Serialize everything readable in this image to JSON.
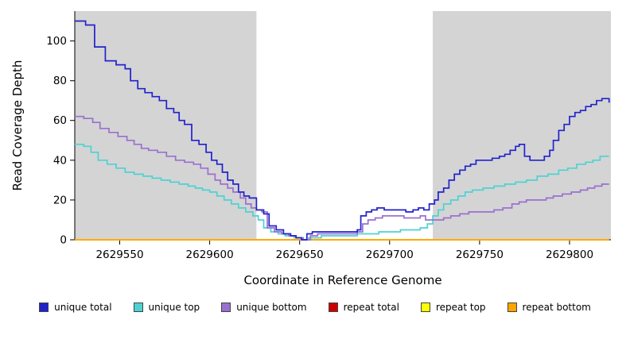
{
  "chart_data": {
    "type": "line",
    "subtype": "step",
    "title": "",
    "xlabel": "Coordinate in Reference Genome",
    "ylabel": "Read Coverage Depth",
    "xlim": [
      2629525,
      2629823
    ],
    "ylim": [
      0,
      115
    ],
    "x_ticks": [
      2629550,
      2629600,
      2629650,
      2629700,
      2629750,
      2629800
    ],
    "y_ticks": [
      0,
      20,
      40,
      60,
      80,
      100
    ],
    "grid": false,
    "legend_position": "bottom",
    "shaded_background_color": "#d4d4d4",
    "unshaded_region": [
      2629626,
      2629724
    ],
    "series": [
      {
        "name": "unique total",
        "color": "#2222cc",
        "points": [
          [
            2629525,
            110
          ],
          [
            2629531,
            108
          ],
          [
            2629536,
            97
          ],
          [
            2629542,
            90
          ],
          [
            2629548,
            88
          ],
          [
            2629553,
            86
          ],
          [
            2629556,
            80
          ],
          [
            2629560,
            76
          ],
          [
            2629564,
            74
          ],
          [
            2629568,
            72
          ],
          [
            2629572,
            70
          ],
          [
            2629576,
            66
          ],
          [
            2629580,
            64
          ],
          [
            2629583,
            60
          ],
          [
            2629586,
            58
          ],
          [
            2629590,
            50
          ],
          [
            2629594,
            48
          ],
          [
            2629598,
            44
          ],
          [
            2629601,
            40
          ],
          [
            2629604,
            38
          ],
          [
            2629607,
            34
          ],
          [
            2629610,
            30
          ],
          [
            2629613,
            28
          ],
          [
            2629616,
            24
          ],
          [
            2629619,
            22
          ],
          [
            2629622,
            21
          ],
          [
            2629626,
            15
          ],
          [
            2629630,
            13
          ],
          [
            2629633,
            7
          ],
          [
            2629637,
            5
          ],
          [
            2629641,
            3
          ],
          [
            2629645,
            2
          ],
          [
            2629648,
            1
          ],
          [
            2629651,
            0
          ],
          [
            2629654,
            3
          ],
          [
            2629657,
            4
          ],
          [
            2629663,
            4
          ],
          [
            2629678,
            4
          ],
          [
            2629682,
            5
          ],
          [
            2629684,
            12
          ],
          [
            2629687,
            14
          ],
          [
            2629690,
            15
          ],
          [
            2629693,
            16
          ],
          [
            2629697,
            15
          ],
          [
            2629703,
            15
          ],
          [
            2629709,
            14
          ],
          [
            2629713,
            15
          ],
          [
            2629716,
            16
          ],
          [
            2629719,
            15
          ],
          [
            2629722,
            18
          ],
          [
            2629725,
            20
          ],
          [
            2629727,
            24
          ],
          [
            2629730,
            26
          ],
          [
            2629733,
            30
          ],
          [
            2629736,
            33
          ],
          [
            2629739,
            35
          ],
          [
            2629742,
            37
          ],
          [
            2629745,
            38
          ],
          [
            2629748,
            40
          ],
          [
            2629753,
            40
          ],
          [
            2629757,
            41
          ],
          [
            2629761,
            42
          ],
          [
            2629764,
            43
          ],
          [
            2629767,
            45
          ],
          [
            2629770,
            47
          ],
          [
            2629772,
            48
          ],
          [
            2629775,
            42
          ],
          [
            2629778,
            40
          ],
          [
            2629783,
            40
          ],
          [
            2629786,
            42
          ],
          [
            2629789,
            45
          ],
          [
            2629791,
            50
          ],
          [
            2629794,
            55
          ],
          [
            2629797,
            58
          ],
          [
            2629800,
            62
          ],
          [
            2629803,
            64
          ],
          [
            2629806,
            65
          ],
          [
            2629809,
            67
          ],
          [
            2629812,
            68
          ],
          [
            2629815,
            70
          ],
          [
            2629818,
            71
          ],
          [
            2629822,
            69
          ]
        ]
      },
      {
        "name": "unique top",
        "color": "#4dd2d2",
        "points": [
          [
            2629525,
            48
          ],
          [
            2629530,
            47
          ],
          [
            2629534,
            44
          ],
          [
            2629538,
            40
          ],
          [
            2629543,
            38
          ],
          [
            2629548,
            36
          ],
          [
            2629553,
            34
          ],
          [
            2629558,
            33
          ],
          [
            2629563,
            32
          ],
          [
            2629568,
            31
          ],
          [
            2629573,
            30
          ],
          [
            2629578,
            29
          ],
          [
            2629583,
            28
          ],
          [
            2629588,
            27
          ],
          [
            2629592,
            26
          ],
          [
            2629596,
            25
          ],
          [
            2629600,
            24
          ],
          [
            2629604,
            22
          ],
          [
            2629608,
            20
          ],
          [
            2629612,
            18
          ],
          [
            2629616,
            16
          ],
          [
            2629620,
            14
          ],
          [
            2629624,
            12
          ],
          [
            2629627,
            10
          ],
          [
            2629630,
            6
          ],
          [
            2629634,
            4
          ],
          [
            2629638,
            3
          ],
          [
            2629642,
            2
          ],
          [
            2629647,
            1
          ],
          [
            2629651,
            0
          ],
          [
            2629655,
            1
          ],
          [
            2629662,
            2
          ],
          [
            2629676,
            2
          ],
          [
            2629682,
            3
          ],
          [
            2629688,
            3
          ],
          [
            2629694,
            4
          ],
          [
            2629700,
            4
          ],
          [
            2629706,
            5
          ],
          [
            2629712,
            5
          ],
          [
            2629717,
            6
          ],
          [
            2629721,
            8
          ],
          [
            2629724,
            12
          ],
          [
            2629727,
            15
          ],
          [
            2629730,
            18
          ],
          [
            2629734,
            20
          ],
          [
            2629738,
            22
          ],
          [
            2629742,
            24
          ],
          [
            2629746,
            25
          ],
          [
            2629752,
            26
          ],
          [
            2629758,
            27
          ],
          [
            2629764,
            28
          ],
          [
            2629770,
            29
          ],
          [
            2629776,
            30
          ],
          [
            2629782,
            32
          ],
          [
            2629788,
            33
          ],
          [
            2629794,
            35
          ],
          [
            2629799,
            36
          ],
          [
            2629804,
            38
          ],
          [
            2629809,
            39
          ],
          [
            2629813,
            40
          ],
          [
            2629817,
            42
          ],
          [
            2629822,
            42
          ]
        ]
      },
      {
        "name": "unique bottom",
        "color": "#9a70d0",
        "points": [
          [
            2629525,
            62
          ],
          [
            2629530,
            61
          ],
          [
            2629535,
            59
          ],
          [
            2629539,
            56
          ],
          [
            2629544,
            54
          ],
          [
            2629549,
            52
          ],
          [
            2629554,
            50
          ],
          [
            2629558,
            48
          ],
          [
            2629562,
            46
          ],
          [
            2629566,
            45
          ],
          [
            2629571,
            44
          ],
          [
            2629576,
            42
          ],
          [
            2629581,
            40
          ],
          [
            2629586,
            39
          ],
          [
            2629591,
            38
          ],
          [
            2629595,
            36
          ],
          [
            2629599,
            33
          ],
          [
            2629603,
            30
          ],
          [
            2629606,
            28
          ],
          [
            2629610,
            26
          ],
          [
            2629613,
            24
          ],
          [
            2629617,
            21
          ],
          [
            2629620,
            18
          ],
          [
            2629623,
            16
          ],
          [
            2629626,
            15
          ],
          [
            2629629,
            14
          ],
          [
            2629632,
            6
          ],
          [
            2629636,
            4
          ],
          [
            2629640,
            3
          ],
          [
            2629644,
            2
          ],
          [
            2629648,
            1
          ],
          [
            2629652,
            0
          ],
          [
            2629656,
            2
          ],
          [
            2629660,
            3
          ],
          [
            2629676,
            3
          ],
          [
            2629682,
            4
          ],
          [
            2629685,
            8
          ],
          [
            2629688,
            10
          ],
          [
            2629692,
            11
          ],
          [
            2629696,
            12
          ],
          [
            2629702,
            12
          ],
          [
            2629708,
            11
          ],
          [
            2629713,
            11
          ],
          [
            2629717,
            12
          ],
          [
            2629720,
            10
          ],
          [
            2629726,
            10
          ],
          [
            2629730,
            11
          ],
          [
            2629734,
            12
          ],
          [
            2629739,
            13
          ],
          [
            2629744,
            14
          ],
          [
            2629752,
            14
          ],
          [
            2629758,
            15
          ],
          [
            2629763,
            16
          ],
          [
            2629768,
            18
          ],
          [
            2629772,
            19
          ],
          [
            2629776,
            20
          ],
          [
            2629782,
            20
          ],
          [
            2629787,
            21
          ],
          [
            2629791,
            22
          ],
          [
            2629796,
            23
          ],
          [
            2629801,
            24
          ],
          [
            2629806,
            25
          ],
          [
            2629810,
            26
          ],
          [
            2629814,
            27
          ],
          [
            2629818,
            28
          ],
          [
            2629822,
            28
          ]
        ]
      },
      {
        "name": "repeat total",
        "color": "#cc0000",
        "points": [
          [
            2629525,
            0
          ],
          [
            2629822,
            0
          ]
        ]
      },
      {
        "name": "repeat top",
        "color": "#ffff00",
        "points": [
          [
            2629525,
            0
          ],
          [
            2629822,
            0
          ]
        ]
      },
      {
        "name": "repeat bottom",
        "color": "#ffa500",
        "points": [
          [
            2629525,
            0
          ],
          [
            2629822,
            0
          ]
        ]
      }
    ]
  }
}
